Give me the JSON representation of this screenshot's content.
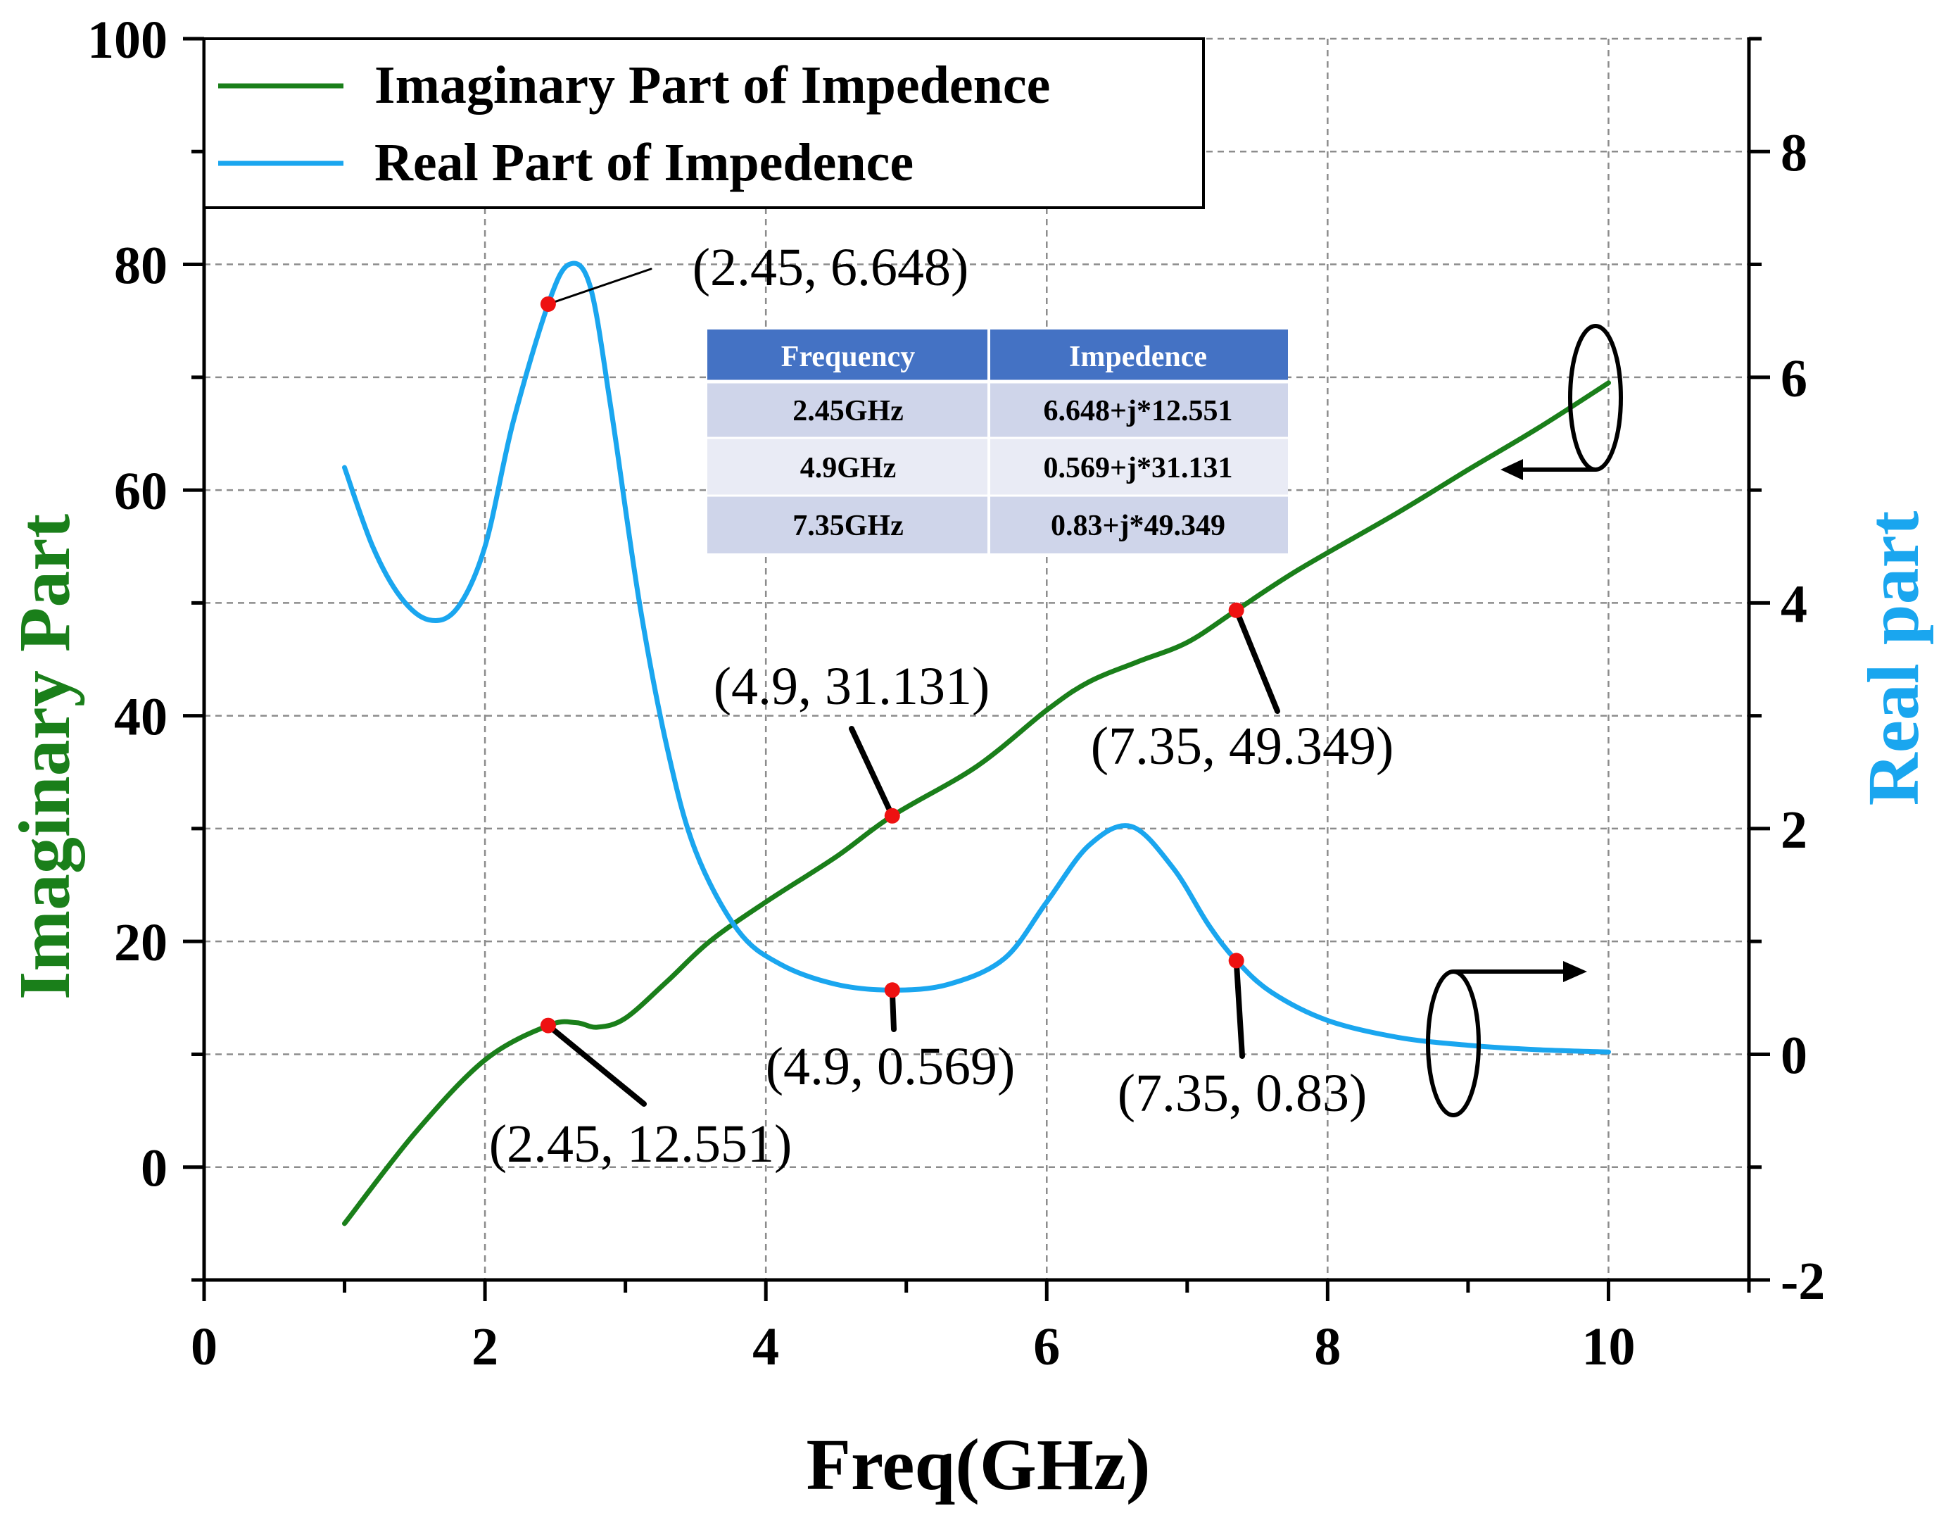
{
  "chart_data": {
    "type": "line",
    "x": [
      1,
      1.5,
      2,
      2.45,
      2.65,
      2.8,
      3,
      3.3,
      3.6,
      4,
      4.5,
      4.9,
      5.5,
      6,
      6.3,
      6.65,
      7,
      7.35,
      7.8,
      8.5,
      9,
      9.5,
      10
    ],
    "series": [
      {
        "name": "Imaginary Part of Impedence",
        "axis": "left",
        "color": "#1a7f1a",
        "x": [
          1,
          1.5,
          2,
          2.45,
          2.65,
          2.8,
          3,
          3.3,
          3.6,
          4,
          4.5,
          4.9,
          5.5,
          6,
          6.3,
          6.65,
          7,
          7.35,
          7.8,
          8.5,
          9,
          9.5,
          10
        ],
        "values": [
          -5,
          3,
          9.5,
          12.551,
          12.8,
          12.4,
          13.2,
          16.5,
          20,
          23.5,
          27.5,
          31.131,
          35.5,
          40.5,
          43,
          44.8,
          46.5,
          49.349,
          53,
          58,
          61.8,
          65.5,
          69.5
        ]
      },
      {
        "name": "Real Part of Impedence",
        "axis": "right",
        "color": "#1aa6ef",
        "x": [
          1,
          1.2,
          1.4,
          1.6,
          1.8,
          2,
          2.2,
          2.45,
          2.6,
          2.75,
          2.9,
          3.1,
          3.3,
          3.5,
          3.8,
          4.1,
          4.5,
          4.9,
          5.3,
          5.7,
          6,
          6.3,
          6.6,
          6.9,
          7.15,
          7.35,
          7.6,
          8,
          8.5,
          9,
          9.5,
          10
        ],
        "values": [
          5.2,
          4.5,
          4.05,
          3.85,
          3.95,
          4.5,
          5.6,
          6.648,
          7.0,
          6.8,
          5.7,
          4.0,
          2.7,
          1.8,
          1.1,
          0.8,
          0.62,
          0.569,
          0.62,
          0.85,
          1.35,
          1.85,
          2.02,
          1.65,
          1.15,
          0.83,
          0.55,
          0.3,
          0.15,
          0.08,
          0.04,
          0.02
        ]
      }
    ],
    "xlabel": "Freq(GHz)",
    "ylabel_left": "Imaginary Part",
    "ylabel_right": "Real part",
    "xlim": [
      0,
      11
    ],
    "ylim_left": [
      -10,
      100
    ],
    "ylim_right": [
      -2,
      9
    ],
    "x_ticks": [
      0,
      2,
      4,
      6,
      8,
      10
    ],
    "y_left_ticks": [
      0,
      20,
      40,
      60,
      80,
      100
    ],
    "y_right_ticks": [
      -2,
      0,
      2,
      4,
      6,
      8
    ],
    "grid": true,
    "legend_position": "top-left",
    "markers": [
      {
        "series": "Imaginary Part of Impedence",
        "x": 2.45,
        "y": 12.551,
        "label": "(2.45, 12.551)"
      },
      {
        "series": "Imaginary Part of Impedence",
        "x": 4.9,
        "y": 31.131,
        "label": "(4.9, 31.131)"
      },
      {
        "series": "Imaginary Part of Impedence",
        "x": 7.35,
        "y": 49.349,
        "label": "(7.35, 49.349)"
      },
      {
        "series": "Real Part of Impedence",
        "x": 2.45,
        "y": 6.648,
        "label": "(2.45, 6.648)"
      },
      {
        "series": "Real Part of Impedence",
        "x": 4.9,
        "y": 0.569,
        "label": "(4.9, 0.569)"
      },
      {
        "series": "Real Part of Impedence",
        "x": 7.35,
        "y": 0.83,
        "label": "(7.35, 0.83)"
      }
    ],
    "inset_table": {
      "headers": [
        "Frequency",
        "Impedence"
      ],
      "rows": [
        [
          "2.45GHz",
          "6.648+j*12.551"
        ],
        [
          "4.9GHz",
          "0.569+j*31.131"
        ],
        [
          "7.35GHz",
          "0.83+j*49.349"
        ]
      ]
    }
  },
  "colors": {
    "imag": "#1a7f1a",
    "real": "#1aa6ef",
    "marker": "#ee1111",
    "table_header": "#4472c4",
    "table_row_dark": "#cfd5ea",
    "table_row_light": "#e9ebf5",
    "grid": "#8c8c8c"
  }
}
